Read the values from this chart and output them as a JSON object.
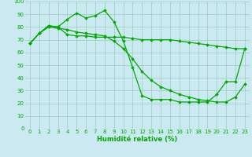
{
  "xlabel": "Humidité relative (%)",
  "background_color": "#cbe9f0",
  "grid_color": "#99ccbb",
  "line_color": "#00aa00",
  "marker": "D",
  "markersize": 1.8,
  "linewidth": 0.9,
  "xlim": [
    -0.5,
    23.5
  ],
  "ylim": [
    0,
    100
  ],
  "xticks": [
    0,
    1,
    2,
    3,
    4,
    5,
    6,
    7,
    8,
    9,
    10,
    11,
    12,
    13,
    14,
    15,
    16,
    17,
    18,
    19,
    20,
    21,
    22,
    23
  ],
  "yticks": [
    0,
    10,
    20,
    30,
    40,
    50,
    60,
    70,
    80,
    90,
    100
  ],
  "tick_fontsize": 5.0,
  "xlabel_fontsize": 6.0,
  "lines": [
    [
      67,
      75,
      81,
      80,
      86,
      91,
      87,
      89,
      93,
      84,
      69,
      48,
      26,
      23,
      23,
      23,
      21,
      21,
      21,
      21,
      27,
      37,
      37,
      63
    ],
    [
      67,
      75,
      81,
      80,
      74,
      73,
      73,
      72,
      72,
      72,
      72,
      71,
      70,
      70,
      70,
      70,
      69,
      68,
      67,
      66,
      65,
      64,
      63,
      63
    ],
    [
      67,
      75,
      80,
      79,
      78,
      76,
      75,
      74,
      73,
      69,
      63,
      55,
      45,
      38,
      33,
      30,
      27,
      25,
      23,
      22,
      21,
      21,
      25,
      35
    ]
  ]
}
